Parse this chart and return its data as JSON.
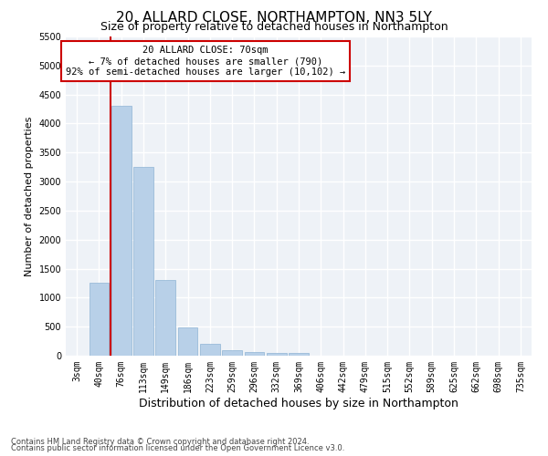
{
  "title": "20, ALLARD CLOSE, NORTHAMPTON, NN3 5LY",
  "subtitle": "Size of property relative to detached houses in Northampton",
  "xlabel": "Distribution of detached houses by size in Northampton",
  "ylabel": "Number of detached properties",
  "footnote1": "Contains HM Land Registry data © Crown copyright and database right 2024.",
  "footnote2": "Contains public sector information licensed under the Open Government Licence v3.0.",
  "bar_color": "#b8d0e8",
  "bar_edge_color": "#8fb4d4",
  "vline_color": "#cc0000",
  "vline_x": 1.5,
  "annotation_text": "20 ALLARD CLOSE: 70sqm\n← 7% of detached houses are smaller (790)\n92% of semi-detached houses are larger (10,102) →",
  "annotation_box_color": "#ffffff",
  "annotation_box_edgecolor": "#cc0000",
  "categories": [
    "3sqm",
    "40sqm",
    "76sqm",
    "113sqm",
    "149sqm",
    "186sqm",
    "223sqm",
    "259sqm",
    "296sqm",
    "332sqm",
    "369sqm",
    "406sqm",
    "442sqm",
    "479sqm",
    "515sqm",
    "552sqm",
    "589sqm",
    "625sqm",
    "662sqm",
    "698sqm",
    "735sqm"
  ],
  "values": [
    0,
    1250,
    4300,
    3250,
    1300,
    490,
    210,
    100,
    60,
    55,
    50,
    0,
    0,
    0,
    0,
    0,
    0,
    0,
    0,
    0,
    0
  ],
  "ylim": [
    0,
    5500
  ],
  "yticks": [
    0,
    500,
    1000,
    1500,
    2000,
    2500,
    3000,
    3500,
    4000,
    4500,
    5000,
    5500
  ],
  "bg_color": "#eef2f7",
  "grid_color": "#ffffff",
  "title_fontsize": 11,
  "subtitle_fontsize": 9,
  "xlabel_fontsize": 9,
  "ylabel_fontsize": 8,
  "tick_fontsize": 7,
  "annot_fontsize": 7.5
}
